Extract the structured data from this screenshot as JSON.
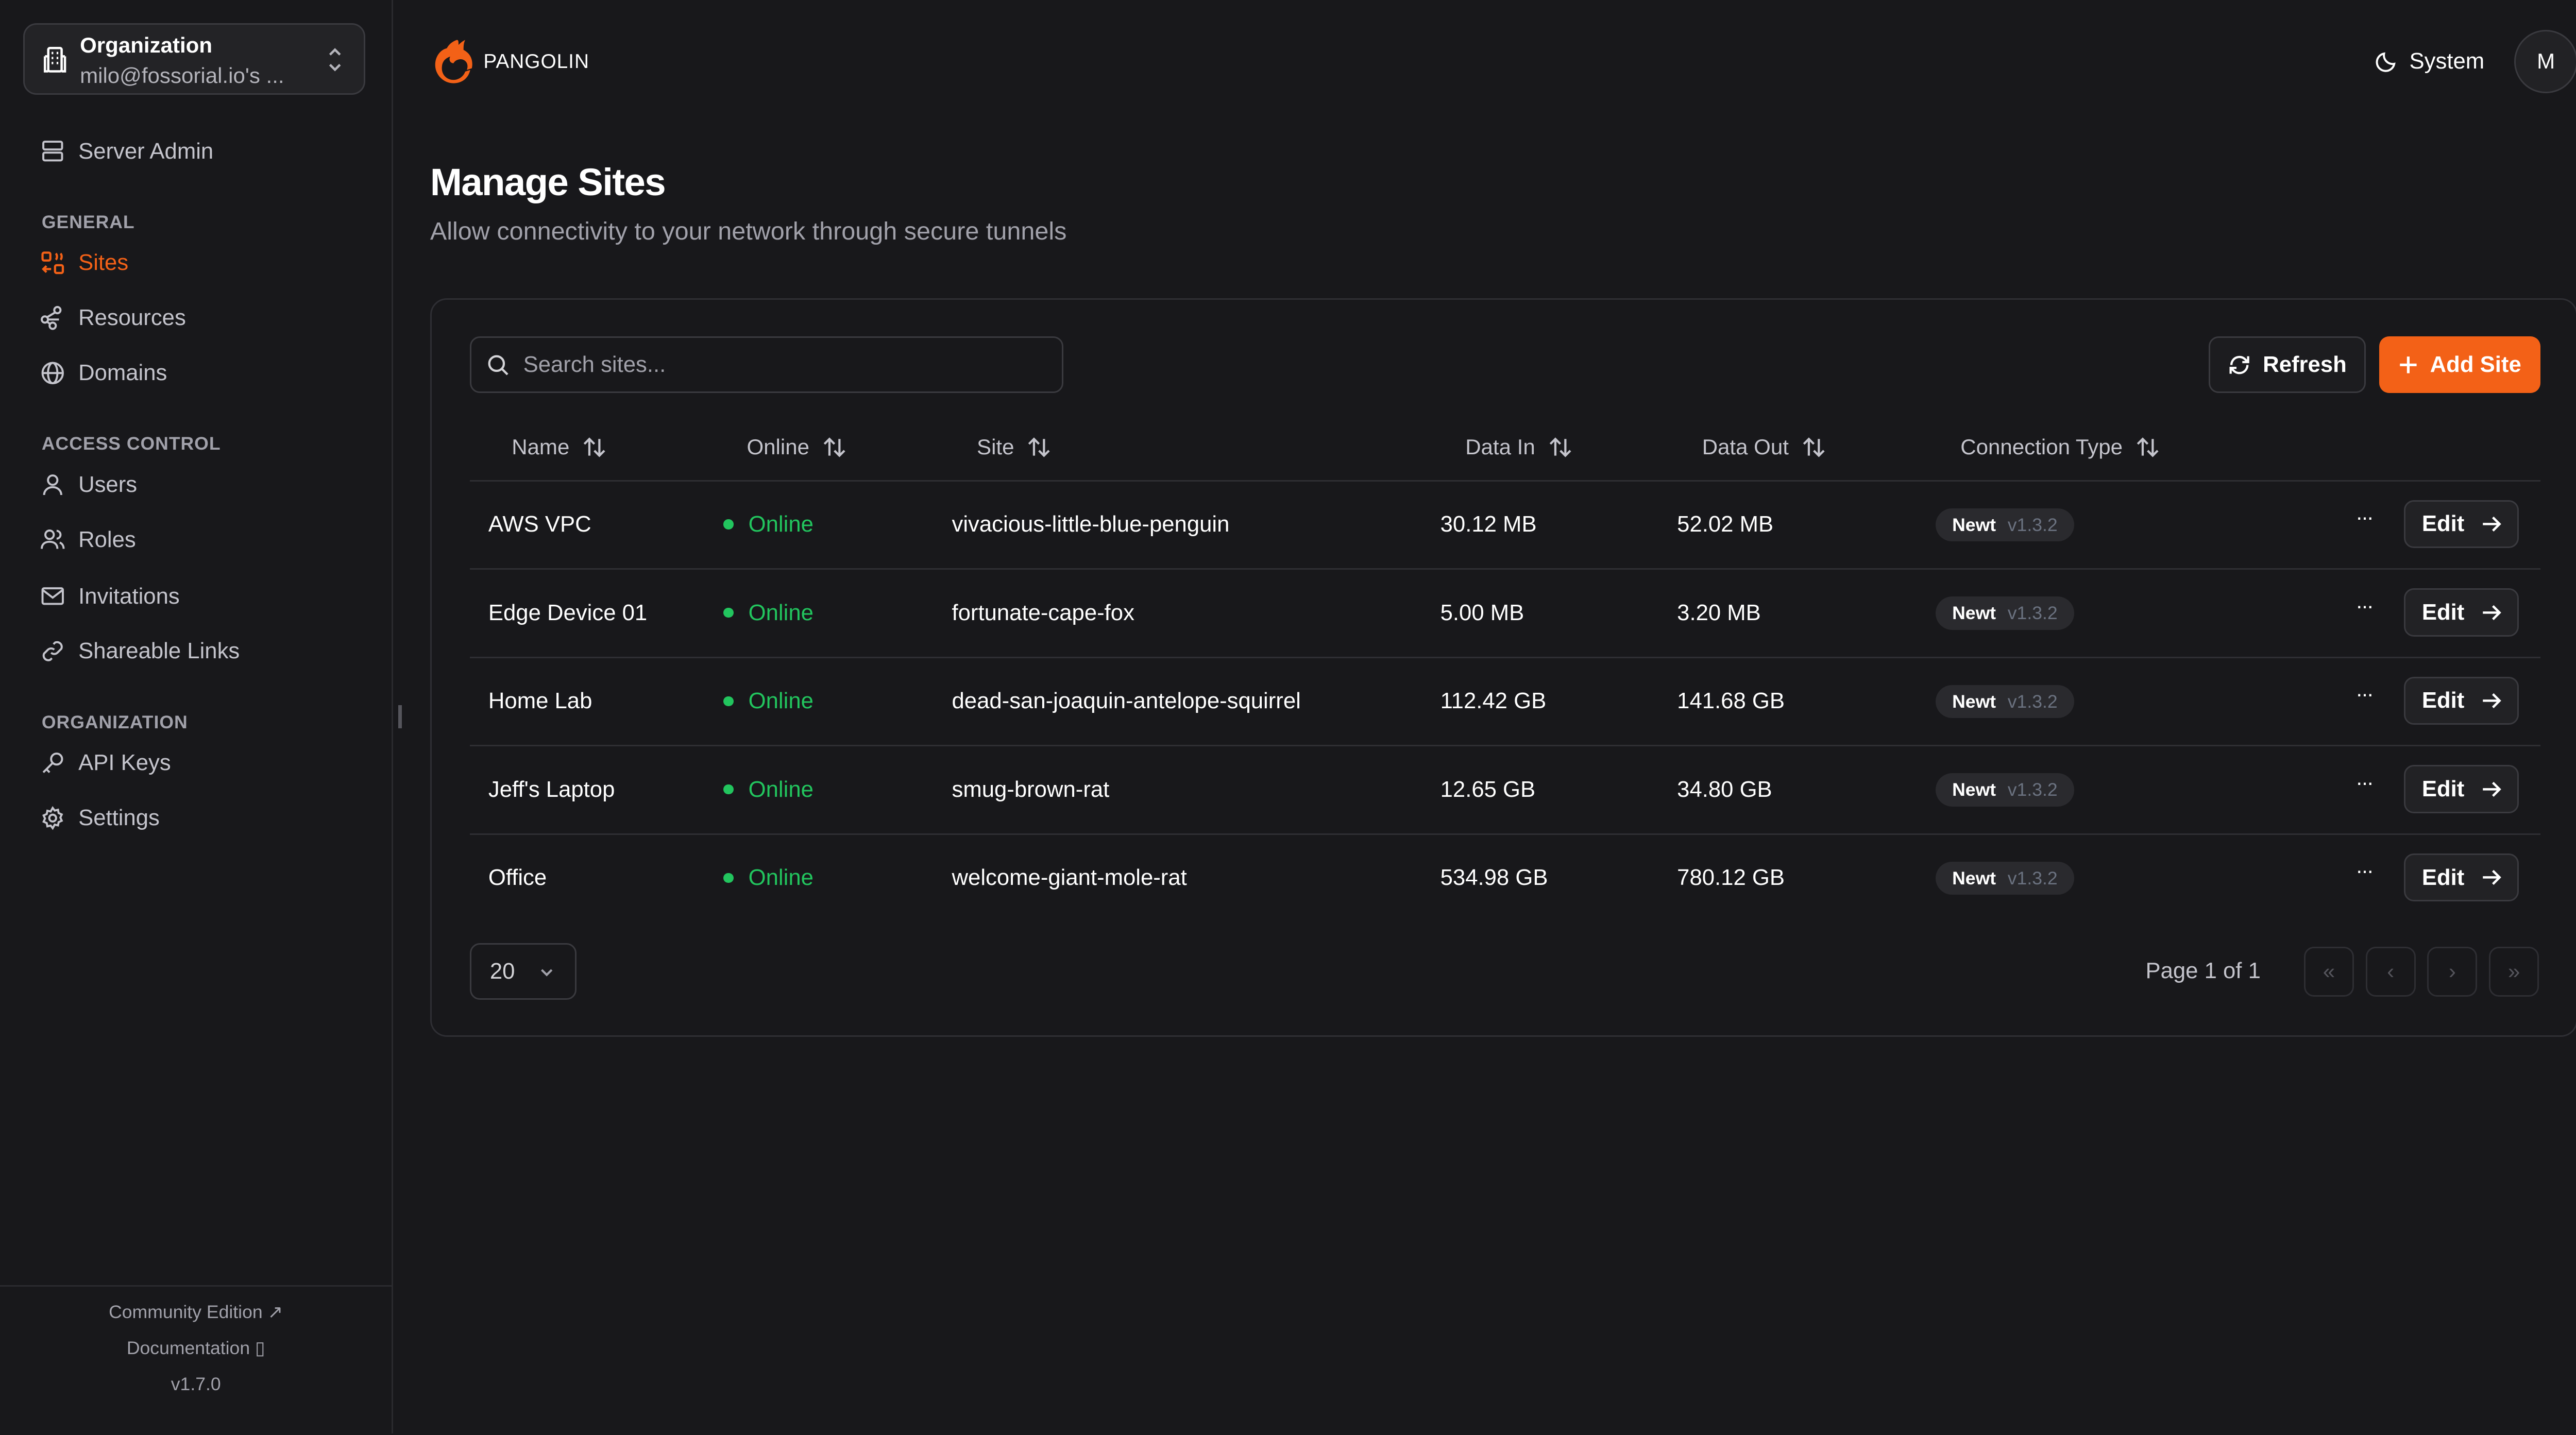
{
  "org": {
    "label": "Organization",
    "name": "milo@fossorial.io's ..."
  },
  "sidebar": {
    "server_admin": "Server Admin",
    "sections": [
      "GENERAL",
      "ACCESS CONTROL",
      "ORGANIZATION"
    ],
    "items": [
      {
        "label": "Sites",
        "icon": "sites-icon",
        "active": true
      },
      {
        "label": "Resources",
        "icon": "resources-icon"
      },
      {
        "label": "Domains",
        "icon": "globe-icon"
      },
      {
        "label": "Users",
        "icon": "user-icon"
      },
      {
        "label": "Roles",
        "icon": "users-icon"
      },
      {
        "label": "Invitations",
        "icon": "mail-icon"
      },
      {
        "label": "Shareable Links",
        "icon": "link-icon"
      },
      {
        "label": "API Keys",
        "icon": "key-icon"
      },
      {
        "label": "Settings",
        "icon": "gear-icon"
      }
    ],
    "footer": {
      "community": "Community Edition",
      "docs": "Documentation",
      "version": "v1.7.0"
    }
  },
  "header": {
    "brand": "PANGOLIN",
    "theme": "System",
    "avatar": "M"
  },
  "page": {
    "title": "Manage Sites",
    "subtitle": "Allow connectivity to your network through secure tunnels"
  },
  "toolbar": {
    "search_placeholder": "Search sites...",
    "refresh": "Refresh",
    "add": "Add Site"
  },
  "accent": "#f36117",
  "table": {
    "columns": [
      "Name",
      "Online",
      "Site",
      "Data In",
      "Data Out",
      "Connection Type"
    ],
    "rows": [
      {
        "name": "AWS VPC",
        "online": "Online",
        "site": "vivacious-little-blue-penguin",
        "in": "30.12 MB",
        "out": "52.02 MB",
        "type": "Newt",
        "version": "v1.3.2"
      },
      {
        "name": "Edge Device 01",
        "online": "Online",
        "site": "fortunate-cape-fox",
        "in": "5.00 MB",
        "out": "3.20 MB",
        "type": "Newt",
        "version": "v1.3.2"
      },
      {
        "name": "Home Lab",
        "online": "Online",
        "site": "dead-san-joaquin-antelope-squirrel",
        "in": "112.42 GB",
        "out": "141.68 GB",
        "type": "Newt",
        "version": "v1.3.2"
      },
      {
        "name": "Jeff's Laptop",
        "online": "Online",
        "site": "smug-brown-rat",
        "in": "12.65 GB",
        "out": "34.80 GB",
        "type": "Newt",
        "version": "v1.3.2"
      },
      {
        "name": "Office",
        "online": "Online",
        "site": "welcome-giant-mole-rat",
        "in": "534.98 GB",
        "out": "780.12 GB",
        "type": "Newt",
        "version": "v1.3.2"
      }
    ],
    "more": "···",
    "edit": "Edit"
  },
  "pagination": {
    "page_size": "20",
    "info": "Page 1 of 1"
  }
}
